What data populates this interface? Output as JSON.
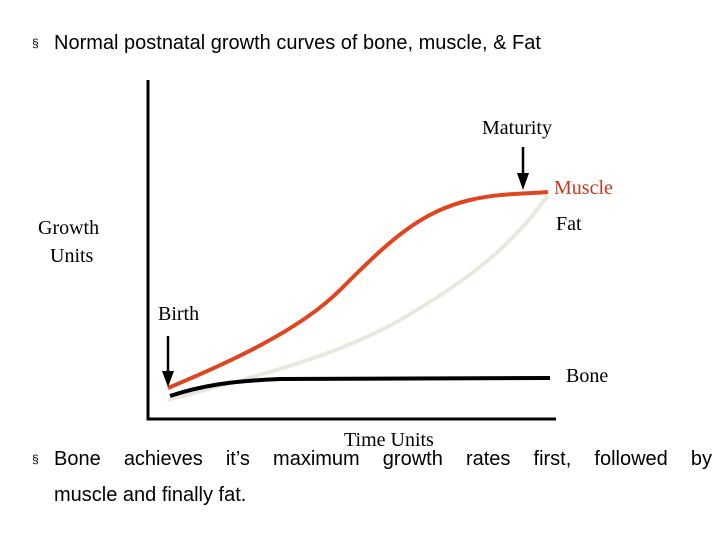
{
  "bullets": {
    "marker": "§",
    "top_text": "Normal postnatal growth curves of bone, muscle, & Fat",
    "bottom_text": "Bone achieves it’s maximum growth rates first, followed by",
    "bottom_text_cont": "muscle and finally fat."
  },
  "diagram": {
    "y_label_line1": "Growth",
    "y_label_line2": "Units",
    "x_label": "Time Units",
    "birth_label": "Birth",
    "maturity_label": "Maturity",
    "muscle_label": "Muscle",
    "fat_label": "Fat",
    "bone_label": "Bone"
  },
  "colors": {
    "muscle": "#e0451f",
    "fat": "#e9e8dd",
    "bone": "#000000",
    "muscle_label": "#c8381c",
    "axis": "#000000"
  }
}
